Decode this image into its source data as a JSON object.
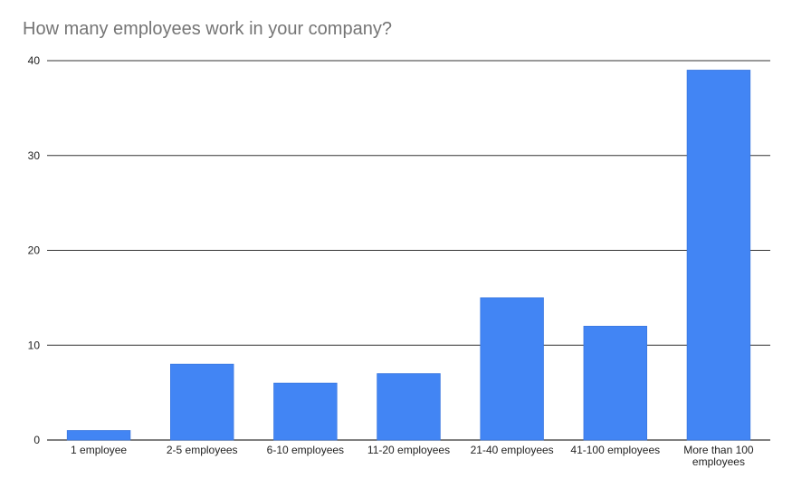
{
  "chart_data": {
    "type": "bar",
    "title": "How many employees work in your company?",
    "xlabel": "",
    "ylabel": "",
    "categories": [
      "1 employee",
      "2-5 employees",
      "6-10 employees",
      "11-20 employees",
      "21-40 employees",
      "41-100 employees",
      "More than 100 employees"
    ],
    "values": [
      1,
      8,
      6,
      7,
      15,
      12,
      39
    ],
    "ylim": [
      0,
      40
    ],
    "yticks": [
      0,
      10,
      20,
      30,
      40
    ],
    "grid": true,
    "legend": "none",
    "colors": {
      "bar": "#4285f4",
      "grid": "#333333",
      "title": "#757575",
      "text": "#222222"
    }
  }
}
